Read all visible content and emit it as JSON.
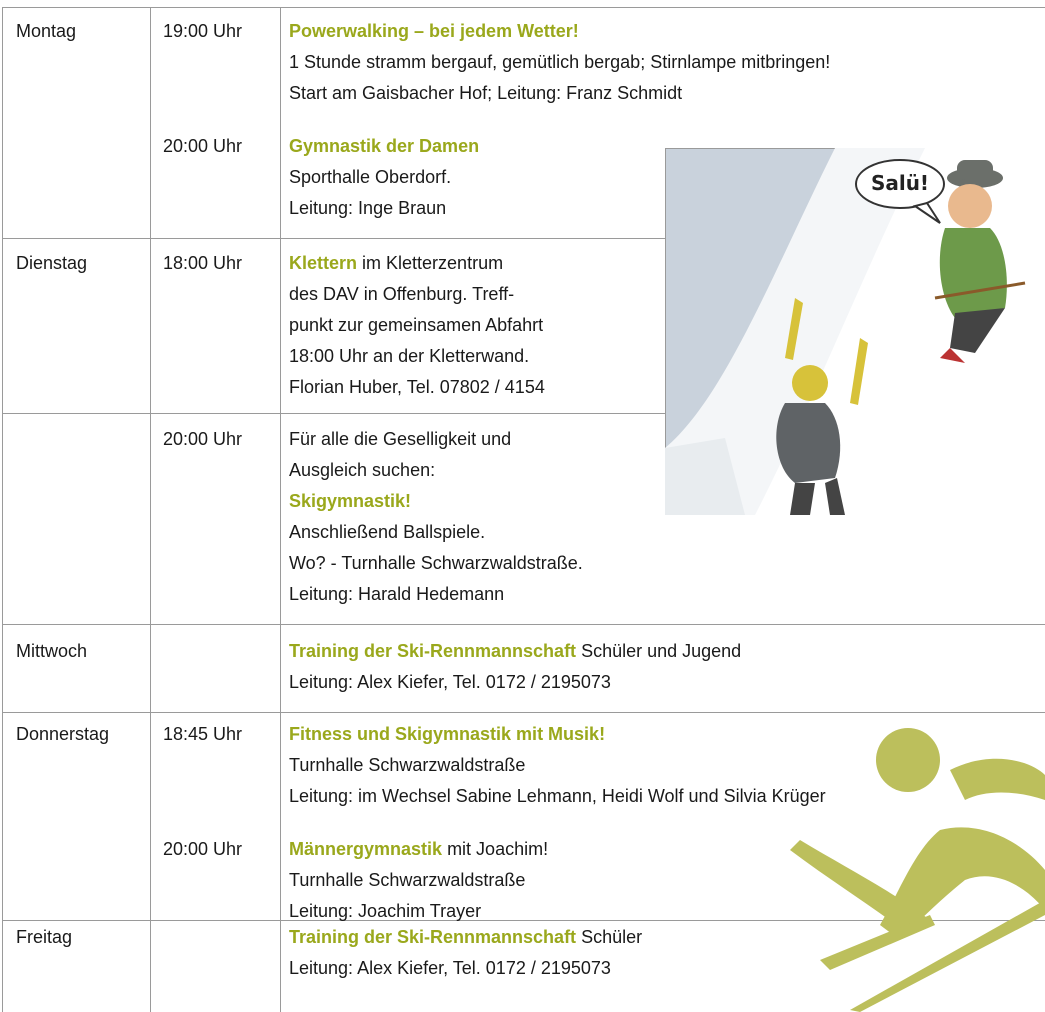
{
  "rows": [
    {
      "day": "Montag",
      "entries": [
        {
          "time": "19:00 Uhr",
          "lines": [
            [
              {
                "highlight": "Powerwalking – bei jedem Wetter!"
              }
            ],
            [
              {
                "text": "1 Stunde stramm bergauf, gemütlich bergab; Stirnlampe mitbringen!"
              }
            ],
            [
              {
                "text": "Start am Gaisbacher Hof; Leitung: Franz Schmidt"
              }
            ]
          ]
        },
        {
          "time": "20:00 Uhr",
          "lines": [
            [
              {
                "highlight": "Gymnastik der Damen"
              }
            ],
            [
              {
                "text": "Sporthalle Oberdorf."
              }
            ],
            [
              {
                "text": "Leitung: Inge Braun"
              }
            ]
          ]
        }
      ]
    },
    {
      "day": "Dienstag",
      "entries": [
        {
          "time": "18:00 Uhr",
          "lines": [
            [
              {
                "highlight": "Klettern"
              },
              {
                "text": "im Kletterzentrum"
              }
            ],
            [
              {
                "text": "des DAV in Offenburg. Treff-"
              }
            ],
            [
              {
                "text": "punkt zur gemeinsamen Abfahrt"
              }
            ],
            [
              {
                "text": "18:00 Uhr an der Kletterwand."
              }
            ],
            [
              {
                "text": "Florian Huber, Tel. 07802 / 4154"
              }
            ]
          ]
        }
      ]
    },
    {
      "entries": [
        {
          "time": "20:00 Uhr",
          "lines": [
            [
              {
                "text": "Für alle die Geselligkeit und"
              }
            ],
            [
              {
                "text": "Ausgleich suchen:"
              }
            ],
            [
              {
                "highlight": "Skigymnastik!"
              }
            ],
            [
              {
                "text": "Anschließend Ballspiele."
              }
            ],
            [
              {
                "text": "Wo? - Turnhalle Schwarzwaldstraße."
              }
            ],
            [
              {
                "text": "Leitung: Harald Hedemann"
              }
            ]
          ]
        }
      ]
    },
    {
      "day": "Mittwoch",
      "entries": [
        {
          "lines": [
            [
              {
                "highlight": "Training der Ski-Rennmannschaft"
              },
              {
                "text": "Schüler und Jugend"
              }
            ],
            [
              {
                "text": "Leitung: Alex Kiefer, Tel. 0172 / 2195073"
              }
            ]
          ]
        }
      ]
    },
    {
      "day": "Donnerstag",
      "entries": [
        {
          "time": "18:45 Uhr",
          "lines": [
            [
              {
                "highlight": "Fitness und Skigymnastik mit Musik!"
              }
            ],
            [
              {
                "text": "Turnhalle Schwarzwaldstraße"
              }
            ],
            [
              {
                "text": "Leitung: im Wechsel Sabine Lehmann, Heidi Wolf und Silvia Krüger"
              }
            ]
          ]
        },
        {
          "time": "20:00 Uhr",
          "lines": [
            [
              {
                "highlight": "Männergymnastik"
              },
              {
                "text": "mit Joachim!"
              }
            ],
            [
              {
                "text": "Turnhalle Schwarzwaldstraße"
              }
            ],
            [
              {
                "text": "Leitung: Joachim Trayer"
              }
            ]
          ]
        }
      ]
    },
    {
      "day": "Freitag",
      "entries": [
        {
          "lines": [
            [
              {
                "highlight": "Training der Ski-Rennmannschaft"
              },
              {
                "text": "Schüler"
              }
            ],
            [
              {
                "text": "Leitung: Alex Kiefer, Tel. 0172 / 2195073"
              }
            ]
          ]
        }
      ]
    }
  ],
  "illustration": {
    "speech_bubble": "Salü!"
  }
}
